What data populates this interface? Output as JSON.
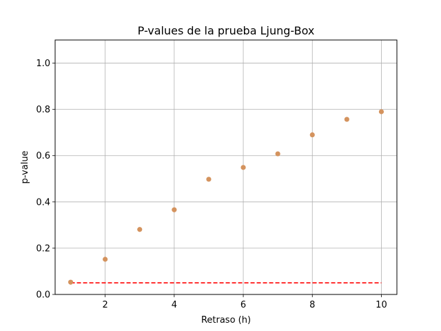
{
  "chart_data": {
    "type": "scatter",
    "title": "P-values de la prueba Ljung-Box",
    "xlabel": "Retraso (h)",
    "ylabel": "p-value",
    "xlim": [
      0.55,
      10.45
    ],
    "ylim": [
      0,
      1.1
    ],
    "x_ticks": [
      2,
      4,
      6,
      8,
      10
    ],
    "y_ticks": [
      0.0,
      0.2,
      0.4,
      0.6,
      0.8,
      1.0
    ],
    "x_tick_labels": [
      "2",
      "4",
      "6",
      "8",
      "10"
    ],
    "y_tick_labels": [
      "0.0",
      "0.2",
      "0.4",
      "0.6",
      "0.8",
      "1.0"
    ],
    "grid": true,
    "series": [
      {
        "color": "#d4935e",
        "x": [
          1,
          2,
          3,
          4,
          5,
          6,
          7,
          8,
          9,
          10
        ],
        "y": [
          0.053,
          0.152,
          0.281,
          0.366,
          0.498,
          0.549,
          0.608,
          0.69,
          0.757,
          0.79
        ]
      }
    ],
    "reference_line": {
      "y": 0.05,
      "x_start": 1,
      "x_end": 10,
      "color": "#ff0000",
      "style": "dashed"
    }
  }
}
